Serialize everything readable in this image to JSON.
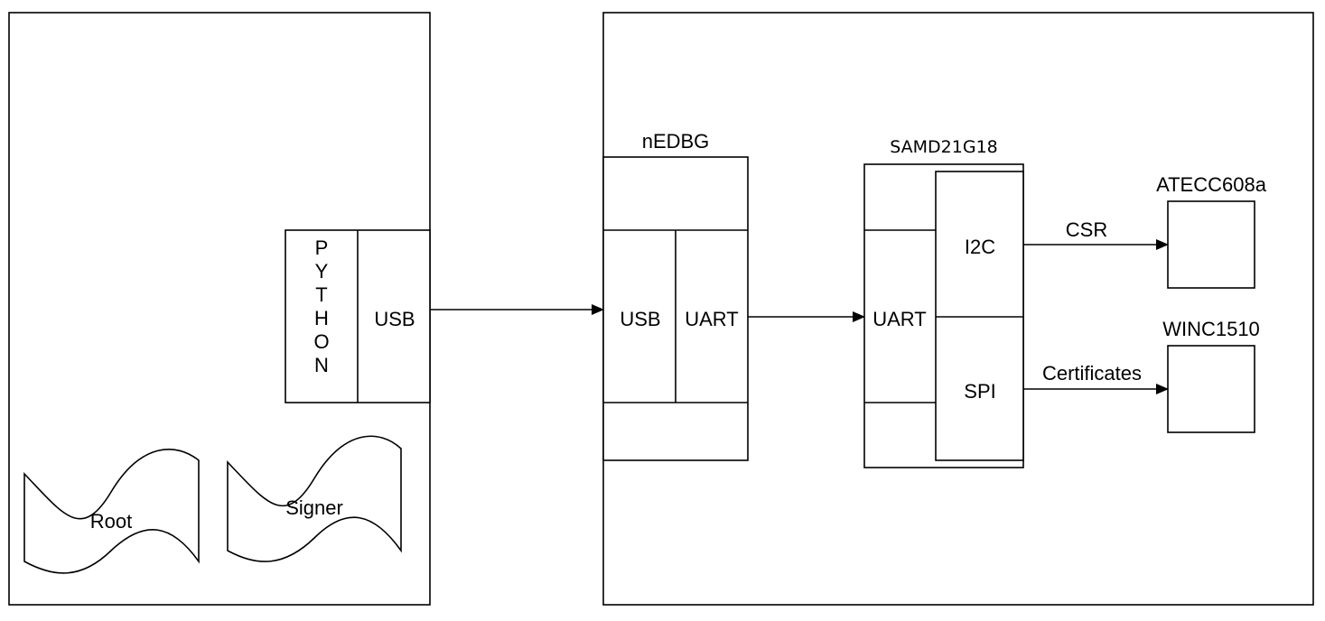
{
  "host": {
    "python_label": "PYTHON",
    "usb_label": "USB",
    "root_label": "Root",
    "signer_label": "Signer"
  },
  "nedbg": {
    "title": "nEDBG",
    "usb_label": "USB",
    "uart_label": "UART"
  },
  "samd": {
    "title": "SAMD21G18",
    "uart_label": "UART",
    "i2c_label": "I2C",
    "spi_label": "SPI"
  },
  "atecc": {
    "title": "ATECC608a"
  },
  "winc": {
    "title": "WINC1510"
  },
  "connections": {
    "csr_label": "CSR",
    "certificates_label": "Certificates"
  }
}
